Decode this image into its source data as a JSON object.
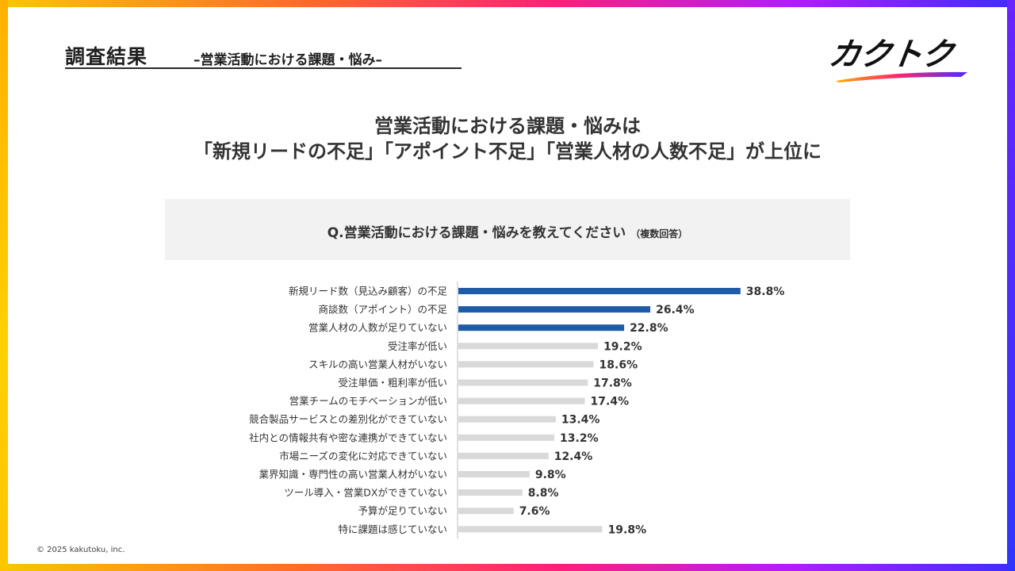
{
  "header": {
    "title": "調査結果",
    "subtitle": "–営業活動における課題・悩み–",
    "logo_text": "カクトク"
  },
  "headline": {
    "line1": "営業活動における課題・悩みは",
    "line2": "「新規リードの不足」「アポイント不足」「営業人材の人数不足」が上位に"
  },
  "question": {
    "text": "Q.営業活動における課題・悩みを教えてください",
    "note": "（複数回答）"
  },
  "footer": {
    "copyright": "© 2025 kakutoku, inc."
  },
  "colors": {
    "highlight": "#1f5ca8",
    "normal": "#d9d9d9",
    "axis": "#bfbfbf"
  },
  "chart_data": {
    "type": "bar",
    "orientation": "horizontal",
    "categories": [
      "新規リード数（見込み顧客）の不足",
      "商談数（アポイント）の不足",
      "営業人材の人数が足りていない",
      "受注率が低い",
      "スキルの高い営業人材がいない",
      "受注単価・粗利率が低い",
      "営業チームのモチベーションが低い",
      "競合製品サービスとの差別化ができていない",
      "社内との情報共有や密な連携ができていない",
      "市場ニーズの変化に対応できていない",
      "業界知識・専門性の高い営業人材がいない",
      "ツール導入・営業DXができていない",
      "予算が足りていない",
      "特に課題は感じていない"
    ],
    "values": [
      38.8,
      26.4,
      22.8,
      19.2,
      18.6,
      17.8,
      17.4,
      13.4,
      13.2,
      12.4,
      9.8,
      8.8,
      7.6,
      19.8
    ],
    "value_labels": [
      "38.8%",
      "26.4%",
      "22.8%",
      "19.2%",
      "18.6%",
      "17.8%",
      "17.4%",
      "13.4%",
      "13.2%",
      "12.4%",
      "9.8%",
      "8.8%",
      "7.6%",
      "19.8%"
    ],
    "highlighted": [
      true,
      true,
      true,
      false,
      false,
      false,
      false,
      false,
      false,
      false,
      false,
      false,
      false,
      false
    ],
    "unit": "%",
    "grid": false,
    "legend": "none"
  }
}
